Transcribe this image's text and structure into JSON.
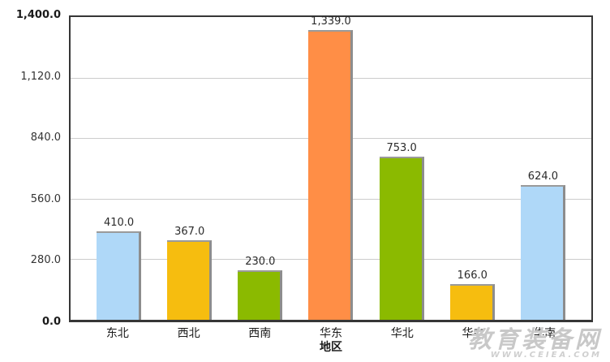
{
  "chart_data": {
    "type": "bar",
    "title": "",
    "xlabel": "地区",
    "ylabel": "",
    "ylim": [
      0,
      1400
    ],
    "grid": true,
    "legend": false,
    "categories": [
      "东北",
      "西北",
      "西南",
      "华东",
      "华北",
      "华中",
      "华南"
    ],
    "values": [
      410.0,
      367.0,
      230.0,
      1339.0,
      753.0,
      166.0,
      624.0
    ],
    "value_labels": [
      "410.0",
      "367.0",
      "230.0",
      "1,339.0",
      "753.0",
      "166.0",
      "624.0"
    ],
    "bar_colors": [
      "#AFD8F8",
      "#F6BD0F",
      "#8BBA00",
      "#FF8E46",
      "#8BBA00",
      "#F6BD0F",
      "#AFD8F8"
    ],
    "yticks": [
      {
        "label": "0.0",
        "value": 0,
        "bold": true
      },
      {
        "label": "280.0",
        "value": 280,
        "bold": false
      },
      {
        "label": "560.0",
        "value": 560,
        "bold": false
      },
      {
        "label": "840.0",
        "value": 840,
        "bold": false
      },
      {
        "label": "1,120.0",
        "value": 1120,
        "bold": false
      },
      {
        "label": "1,400.0",
        "value": 1400,
        "bold": true
      }
    ]
  },
  "watermark": {
    "title": "教育装备网",
    "url_text": "WWW.CEIEA.COM"
  },
  "colors": {
    "background": "#FFFFFF",
    "axis_border": "#363636",
    "gridline": "#CCCCCC",
    "tick_text": "#333333",
    "value_text": "#2B2B2B",
    "bar_blue": "#AFD8F8",
    "bar_yellow": "#F6BD0F",
    "bar_green": "#8BBA00",
    "bar_orange": "#FF8E46",
    "watermark_gray": "#C8C8C8"
  }
}
